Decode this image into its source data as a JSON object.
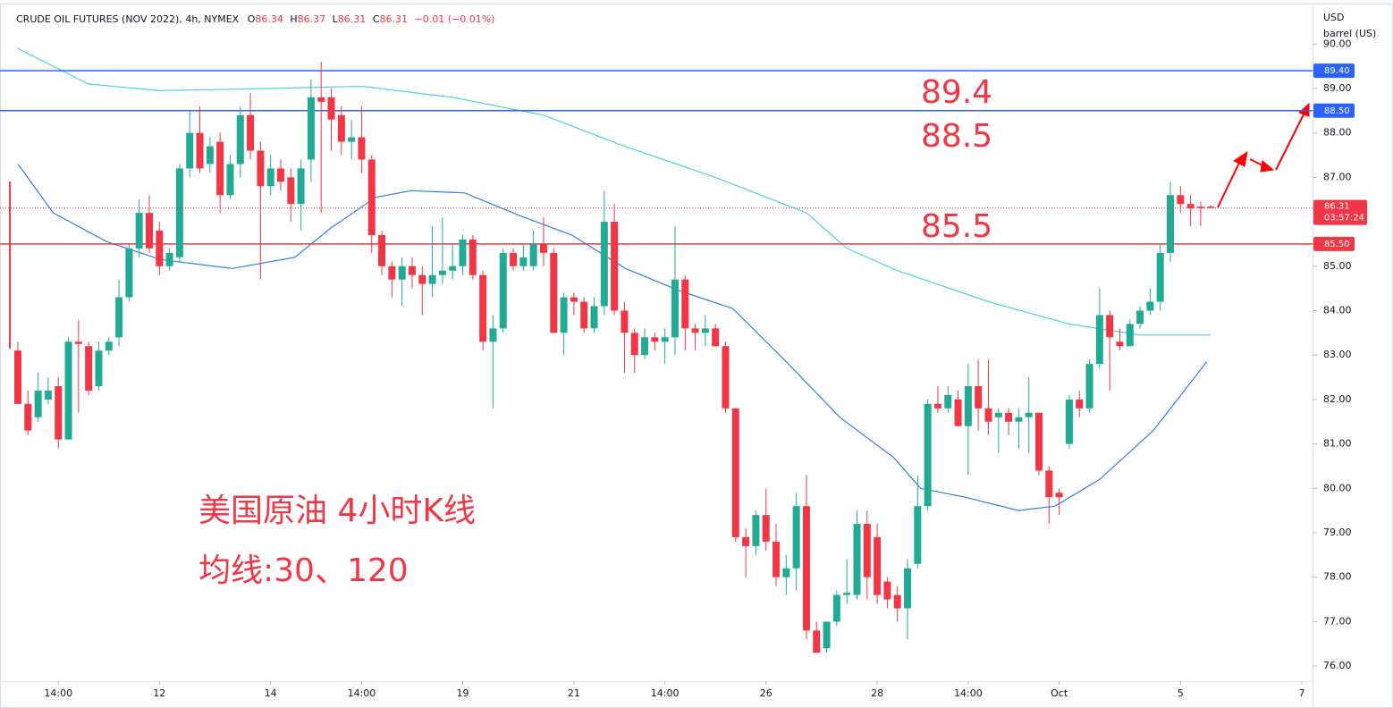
{
  "chart_data": {
    "type": "candlestick",
    "header": {
      "symbol": "CRUDE OIL FUTURES (NOV 2022), 4h, NYMEX",
      "o_label": "O",
      "o": "86.34",
      "h_label": "H",
      "h": "86.37",
      "l_label": "L",
      "l": "86.31",
      "c_label": "C",
      "c": "86.31",
      "change": "−0.01 (−0.01%)"
    },
    "unit": [
      "USD",
      "barrel (US)"
    ],
    "up_color": "#22ab94",
    "down_color": "#f23645",
    "categories": [
      null,
      null,
      null,
      null,
      "14:00",
      null,
      null,
      null,
      null,
      null,
      null,
      null,
      null,
      null,
      "12",
      null,
      null,
      null,
      null,
      null,
      null,
      null,
      null,
      null,
      null,
      "14",
      null,
      null,
      null,
      null,
      null,
      null,
      null,
      null,
      "14:00",
      null,
      null,
      null,
      null,
      null,
      null,
      null,
      null,
      null,
      "19",
      null,
      null,
      null,
      null,
      null,
      null,
      null,
      null,
      null,
      null,
      "21",
      null,
      null,
      null,
      null,
      null,
      null,
      null,
      null,
      "14:00",
      null,
      null,
      null,
      null,
      null,
      null,
      null,
      null,
      null,
      "26",
      null,
      null,
      null,
      null,
      null,
      null,
      null,
      null,
      null,
      null,
      "28",
      null,
      null,
      null,
      null,
      null,
      null,
      null,
      null,
      "14:00",
      null,
      null,
      null,
      null,
      null,
      null,
      null,
      null,
      "Oct",
      null,
      null,
      null,
      null,
      null,
      null,
      null,
      null,
      null,
      null,
      null,
      "5",
      null,
      null,
      null,
      null,
      null,
      null,
      null,
      null,
      null,
      null,
      null,
      "7"
    ],
    "candles": [
      [
        83.1,
        83.3,
        81.9,
        81.9
      ],
      [
        81.9,
        82.2,
        81.2,
        81.3
      ],
      [
        81.6,
        82.6,
        81.5,
        82.2
      ],
      [
        82.0,
        82.5,
        81.9,
        82.2
      ],
      [
        82.3,
        82.5,
        80.9,
        81.1
      ],
      [
        81.1,
        83.4,
        81.1,
        83.3
      ],
      [
        83.3,
        83.8,
        81.7,
        83.25
      ],
      [
        83.2,
        83.3,
        82.1,
        82.2
      ],
      [
        82.3,
        83.3,
        82.2,
        83.1
      ],
      [
        83.1,
        83.4,
        83.0,
        83.3
      ],
      [
        83.4,
        84.7,
        83.2,
        84.3
      ],
      [
        84.3,
        85.5,
        84.2,
        85.4
      ],
      [
        85.4,
        86.5,
        85.2,
        86.2
      ],
      [
        86.2,
        86.6,
        85.3,
        85.4
      ],
      [
        85.8,
        86.0,
        84.8,
        85.0
      ],
      [
        85.0,
        85.4,
        84.9,
        85.3
      ],
      [
        85.2,
        87.3,
        85.1,
        87.2
      ],
      [
        87.2,
        88.5,
        87.0,
        88.0
      ],
      [
        88.0,
        88.6,
        87.1,
        87.2
      ],
      [
        87.3,
        87.9,
        87.1,
        87.7
      ],
      [
        87.8,
        88.0,
        86.2,
        86.6
      ],
      [
        86.6,
        87.5,
        86.5,
        87.3
      ],
      [
        87.3,
        88.6,
        87.0,
        88.4
      ],
      [
        88.4,
        88.9,
        87.4,
        87.6
      ],
      [
        87.6,
        87.8,
        84.7,
        86.8
      ],
      [
        86.8,
        87.5,
        86.6,
        87.2
      ],
      [
        87.2,
        87.4,
        86.7,
        86.9
      ],
      [
        87.0,
        87.2,
        86.0,
        86.4
      ],
      [
        86.4,
        87.4,
        85.8,
        87.2
      ],
      [
        87.4,
        89.2,
        86.9,
        88.8
      ],
      [
        88.8,
        89.6,
        86.2,
        88.7
      ],
      [
        88.8,
        89.0,
        87.6,
        88.3
      ],
      [
        88.4,
        88.6,
        87.5,
        87.8
      ],
      [
        87.8,
        88.3,
        87.4,
        87.9
      ],
      [
        87.9,
        88.6,
        87.1,
        87.4
      ],
      [
        87.4,
        87.5,
        85.3,
        85.7
      ],
      [
        85.7,
        85.8,
        84.8,
        85.0
      ],
      [
        85.0,
        85.1,
        84.3,
        84.7
      ],
      [
        84.7,
        85.2,
        84.1,
        85.0
      ],
      [
        85.0,
        85.2,
        84.5,
        84.8
      ],
      [
        84.8,
        85.0,
        83.9,
        84.6
      ],
      [
        84.6,
        85.9,
        84.3,
        84.8
      ],
      [
        84.8,
        86.1,
        84.6,
        84.9
      ],
      [
        84.9,
        85.5,
        84.7,
        85.0
      ],
      [
        85.0,
        85.7,
        84.8,
        85.6
      ],
      [
        85.6,
        85.7,
        84.7,
        84.8
      ],
      [
        84.8,
        84.9,
        83.1,
        83.3
      ],
      [
        83.3,
        83.9,
        81.8,
        83.6
      ],
      [
        83.6,
        85.4,
        83.5,
        85.3
      ],
      [
        85.3,
        85.4,
        84.9,
        85.0
      ],
      [
        85.0,
        85.5,
        84.9,
        85.2
      ],
      [
        85.0,
        85.8,
        84.9,
        85.5
      ],
      [
        85.5,
        86.1,
        85.0,
        85.3
      ],
      [
        85.3,
        85.4,
        83.5,
        83.5
      ],
      [
        83.5,
        84.4,
        83.0,
        84.3
      ],
      [
        84.3,
        84.4,
        83.9,
        84.2
      ],
      [
        84.2,
        84.3,
        83.5,
        83.6
      ],
      [
        83.6,
        84.3,
        83.5,
        84.1
      ],
      [
        84.1,
        86.7,
        83.9,
        86.0
      ],
      [
        86.0,
        86.4,
        83.9,
        84.0
      ],
      [
        84.0,
        84.2,
        82.6,
        83.5
      ],
      [
        83.5,
        83.6,
        82.6,
        83.0
      ],
      [
        83.0,
        83.6,
        82.9,
        83.4
      ],
      [
        83.4,
        83.5,
        83.1,
        83.3
      ],
      [
        83.3,
        83.6,
        82.8,
        83.4
      ],
      [
        83.4,
        85.9,
        83.0,
        84.7
      ],
      [
        84.7,
        84.8,
        83.1,
        83.6
      ],
      [
        83.6,
        83.7,
        83.1,
        83.5
      ],
      [
        83.5,
        83.9,
        83.2,
        83.6
      ],
      [
        83.6,
        83.7,
        83.2,
        83.2
      ],
      [
        83.2,
        83.3,
        81.7,
        81.8
      ],
      [
        81.8,
        81.8,
        78.8,
        78.9
      ],
      [
        78.9,
        79.1,
        78.0,
        78.7
      ],
      [
        78.7,
        79.5,
        78.5,
        79.4
      ],
      [
        79.4,
        80.0,
        78.6,
        78.8
      ],
      [
        78.8,
        79.2,
        77.8,
        78.0
      ],
      [
        78.0,
        78.5,
        77.6,
        78.2
      ],
      [
        78.2,
        79.9,
        77.7,
        79.6
      ],
      [
        79.6,
        80.3,
        76.6,
        76.8
      ],
      [
        76.8,
        77.0,
        76.3,
        76.3
      ],
      [
        76.4,
        77.0,
        76.3,
        77.0
      ],
      [
        77.0,
        77.7,
        76.9,
        77.6
      ],
      [
        77.6,
        78.4,
        77.4,
        77.65
      ],
      [
        77.6,
        79.5,
        77.5,
        79.2
      ],
      [
        79.2,
        79.5,
        77.5,
        78.0
      ],
      [
        78.9,
        79.2,
        77.4,
        77.6
      ],
      [
        77.9,
        78.0,
        77.3,
        77.5
      ],
      [
        77.6,
        77.8,
        77.0,
        77.3
      ],
      [
        77.3,
        78.4,
        76.6,
        78.2
      ],
      [
        78.3,
        80.3,
        78.2,
        79.6
      ],
      [
        79.6,
        82.0,
        79.5,
        81.9
      ],
      [
        81.9,
        82.3,
        81.7,
        81.8
      ],
      [
        81.8,
        82.3,
        81.7,
        82.1
      ],
      [
        82.0,
        82.2,
        81.4,
        81.4
      ],
      [
        81.4,
        82.8,
        80.3,
        82.3
      ],
      [
        82.3,
        82.9,
        81.3,
        81.8
      ],
      [
        81.8,
        82.9,
        81.2,
        81.5
      ],
      [
        81.6,
        81.8,
        80.8,
        81.7
      ],
      [
        81.7,
        81.8,
        81.2,
        81.5
      ],
      [
        81.5,
        81.8,
        80.9,
        81.6
      ],
      [
        81.6,
        82.5,
        80.8,
        81.7
      ],
      [
        81.7,
        81.7,
        80.3,
        80.4
      ],
      [
        80.4,
        80.5,
        79.2,
        79.8
      ],
      [
        79.9,
        80.0,
        79.4,
        79.8
      ],
      [
        81.0,
        82.1,
        80.9,
        82.0
      ],
      [
        82.0,
        82.2,
        81.6,
        81.8
      ],
      [
        81.8,
        82.9,
        81.7,
        82.8
      ],
      [
        82.8,
        84.5,
        82.7,
        83.9
      ],
      [
        83.9,
        84.0,
        82.2,
        83.4
      ],
      [
        83.3,
        83.6,
        83.1,
        83.2
      ],
      [
        83.2,
        83.8,
        83.2,
        83.7
      ],
      [
        83.7,
        84.1,
        83.6,
        84.0
      ],
      [
        84.0,
        84.5,
        83.9,
        84.2
      ],
      [
        84.2,
        85.5,
        84.0,
        85.3
      ],
      [
        85.3,
        86.9,
        85.1,
        86.6
      ],
      [
        86.6,
        86.8,
        86.2,
        86.4
      ],
      [
        86.4,
        86.6,
        85.9,
        86.3
      ],
      [
        86.34,
        86.45,
        85.9,
        86.31
      ],
      [
        86.34,
        86.37,
        86.31,
        86.31
      ],
      null,
      null,
      null,
      null,
      null,
      null,
      null,
      null,
      null
    ],
    "moving_averages": [
      {
        "color": "#2f7fe8",
        "x": [
          0,
          3.5,
          8.8,
          14.1,
          21.2,
          27.4,
          30.9,
          35.4,
          38.9,
          44.2,
          49.5,
          54.8,
          60.1,
          65.4,
          70.7,
          76,
          81.3,
          86.6,
          89.3,
          93.7,
          99,
          102.6,
          107,
          112.3,
          117.6
        ],
        "values": [
          87.3,
          86.2,
          85.55,
          85.15,
          84.95,
          85.2,
          85.85,
          86.55,
          86.7,
          86.65,
          86.15,
          85.7,
          84.95,
          84.45,
          84.05,
          82.85,
          81.6,
          80.7,
          80.0,
          79.8,
          79.5,
          79.6,
          80.2,
          81.3,
          82.85
        ]
      },
      {
        "color": "#4fd0e0",
        "x": [
          0,
          7,
          14,
          25,
          34,
          43,
          52,
          60,
          69,
          78,
          82,
          87,
          96,
          104,
          111,
          118
        ],
        "values": [
          89.9,
          89.1,
          88.95,
          89.0,
          89.05,
          88.8,
          88.4,
          87.7,
          87.0,
          86.2,
          85.4,
          84.9,
          84.2,
          83.7,
          83.45,
          83.45
        ]
      }
    ],
    "ylim": [
      75.66,
      90.83
    ],
    "yticks": [
      {
        "value": 76,
        "label": "76.00"
      },
      {
        "value": 77,
        "label": "77.00"
      },
      {
        "value": 78,
        "label": "78.00"
      },
      {
        "value": 79,
        "label": "79.00"
      },
      {
        "value": 80,
        "label": "80.00"
      },
      {
        "value": 81,
        "label": "81.00"
      },
      {
        "value": 82,
        "label": "82.00"
      },
      {
        "value": 83,
        "label": "83.00"
      },
      {
        "value": 84,
        "label": "84.00"
      },
      {
        "value": 85,
        "label": "85.00"
      },
      {
        "value": 86,
        "label": "86.00"
      },
      {
        "value": 87,
        "label": "87.00"
      },
      {
        "value": 88,
        "label": "88.00"
      },
      {
        "value": 89,
        "label": "89.00"
      },
      {
        "value": 90,
        "label": "90.00"
      }
    ],
    "levels": [
      {
        "value": 89.4,
        "label": "89.40",
        "annotation": "89.4",
        "color": "#2962ff"
      },
      {
        "value": 88.5,
        "label": "88.50",
        "annotation": "88.5",
        "color": "#2962ff"
      },
      {
        "value": 85.5,
        "label": "85.50",
        "annotation": "85.5",
        "color": "#f23645"
      }
    ],
    "last": {
      "value": 86.31,
      "label": "86.31",
      "countdown": "03:57:24",
      "color": "#f23645"
    },
    "notes": [
      "美国原油 4小时K线",
      "均线:30、120"
    ]
  }
}
